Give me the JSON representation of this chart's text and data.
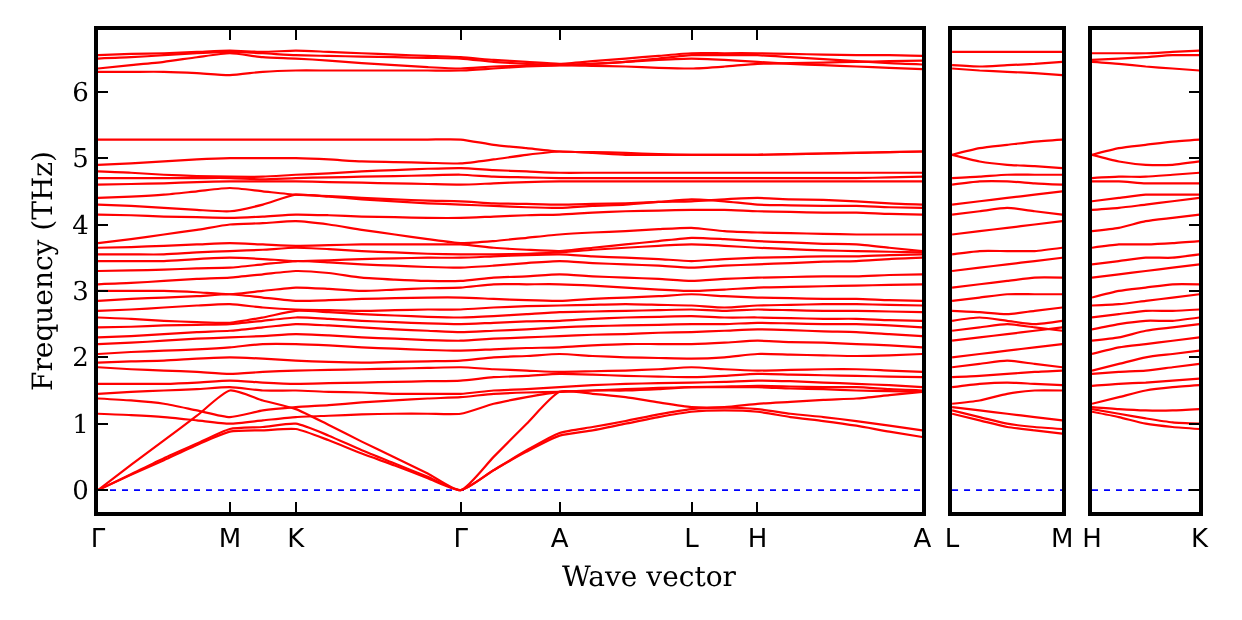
{
  "chart_data": [
    {
      "type": "line",
      "ylabel": "Frequency (THz)",
      "xlabel": "Wave vector",
      "grid": false,
      "marker": "none",
      "line_style": "solid",
      "categories": [
        "Γ",
        null,
        null,
        null,
        "M",
        null,
        "K",
        null,
        null,
        null,
        null,
        "Γ",
        null,
        null,
        "A",
        null,
        null,
        null,
        "L",
        null,
        "H",
        null,
        null,
        null,
        null,
        "A"
      ],
      "ylim": [
        -0.33,
        6.93
      ],
      "yticks": [
        0,
        1,
        2,
        3,
        4,
        5,
        6
      ],
      "ref_lines": [
        {
          "axis": "y",
          "value": 0,
          "color": "#0000ff",
          "line_style": "dotted"
        }
      ],
      "series": [
        {
          "color": "#ff0000",
          "values": [
            0,
            0.23,
            0.45,
            0.68,
            0.88,
            0.9,
            0.92,
            0.75,
            0.55,
            0.37,
            0.18,
            0,
            0.3,
            0.58,
            0.82,
            0.9,
            1.0,
            1.1,
            1.18,
            1.2,
            1.18,
            1.1,
            1.04,
            0.97,
            0.88,
            0.8
          ]
        },
        {
          "color": "#ff0000",
          "values": [
            0,
            0.24,
            0.48,
            0.7,
            0.92,
            0.95,
            1.0,
            0.82,
            0.6,
            0.4,
            0.2,
            0,
            0.3,
            0.6,
            0.86,
            0.95,
            1.04,
            1.14,
            1.22,
            1.24,
            1.22,
            1.15,
            1.1,
            1.04,
            0.97,
            0.9
          ]
        },
        {
          "color": "#ff0000",
          "values": [
            0,
            0.38,
            0.75,
            1.12,
            1.5,
            1.35,
            1.22,
            0.98,
            0.73,
            0.49,
            0.25,
            0,
            0.5,
            1.0,
            1.48,
            1.45,
            1.4,
            1.32,
            1.25,
            1.25,
            1.3,
            1.33,
            1.36,
            1.38,
            1.43,
            1.48
          ]
        },
        {
          "color": "#ff0000",
          "values": [
            1.15,
            1.13,
            1.1,
            1.05,
            1.0,
            1.05,
            1.1,
            1.12,
            1.14,
            1.15,
            1.15,
            1.15,
            1.3,
            1.4,
            1.48,
            1.5,
            1.5,
            1.52,
            1.55,
            1.55,
            1.55,
            1.53,
            1.52,
            1.5,
            1.49,
            1.48
          ]
        },
        {
          "color": "#ff0000",
          "values": [
            1.38,
            1.35,
            1.3,
            1.2,
            1.1,
            1.2,
            1.25,
            1.28,
            1.32,
            1.35,
            1.38,
            1.4,
            1.45,
            1.47,
            1.48,
            1.5,
            1.52,
            1.54,
            1.55,
            1.56,
            1.57,
            1.56,
            1.55,
            1.55,
            1.52,
            1.5
          ]
        },
        {
          "color": "#ff0000",
          "values": [
            1.45,
            1.48,
            1.5,
            1.52,
            1.55,
            1.5,
            1.5,
            1.48,
            1.47,
            1.45,
            1.45,
            1.45,
            1.5,
            1.52,
            1.55,
            1.58,
            1.6,
            1.61,
            1.62,
            1.63,
            1.65,
            1.64,
            1.62,
            1.6,
            1.58,
            1.55
          ]
        },
        {
          "color": "#ff0000",
          "values": [
            1.6,
            1.6,
            1.6,
            1.62,
            1.65,
            1.62,
            1.6,
            1.61,
            1.62,
            1.63,
            1.64,
            1.65,
            1.7,
            1.72,
            1.75,
            1.74,
            1.72,
            1.71,
            1.7,
            1.72,
            1.75,
            1.74,
            1.73,
            1.72,
            1.71,
            1.7
          ]
        },
        {
          "color": "#ff0000",
          "values": [
            1.85,
            1.82,
            1.8,
            1.78,
            1.75,
            1.78,
            1.8,
            1.81,
            1.82,
            1.83,
            1.84,
            1.85,
            1.82,
            1.8,
            1.78,
            1.79,
            1.8,
            1.82,
            1.85,
            1.82,
            1.8,
            1.81,
            1.82,
            1.82,
            1.8,
            1.78
          ]
        },
        {
          "color": "#ff0000",
          "values": [
            1.92,
            1.94,
            1.95,
            1.98,
            2.0,
            1.98,
            1.95,
            1.93,
            1.92,
            1.93,
            1.94,
            1.95,
            2.0,
            2.02,
            2.05,
            2.02,
            2.0,
            1.99,
            1.98,
            2.0,
            2.05,
            2.04,
            2.03,
            2.02,
            2.03,
            2.05
          ]
        },
        {
          "color": "#ff0000",
          "values": [
            2.05,
            2.08,
            2.1,
            2.12,
            2.15,
            2.2,
            2.2,
            2.18,
            2.15,
            2.13,
            2.11,
            2.1,
            2.12,
            2.14,
            2.15,
            2.18,
            2.2,
            2.2,
            2.2,
            2.22,
            2.25,
            2.23,
            2.22,
            2.2,
            2.18,
            2.15
          ]
        },
        {
          "color": "#ff0000",
          "values": [
            2.2,
            2.22,
            2.25,
            2.28,
            2.3,
            2.32,
            2.35,
            2.33,
            2.3,
            2.28,
            2.26,
            2.25,
            2.28,
            2.3,
            2.32,
            2.34,
            2.35,
            2.37,
            2.38,
            2.4,
            2.42,
            2.41,
            2.39,
            2.38,
            2.35,
            2.32
          ]
        },
        {
          "color": "#ff0000",
          "values": [
            2.3,
            2.32,
            2.35,
            2.38,
            2.4,
            2.45,
            2.5,
            2.48,
            2.45,
            2.42,
            2.4,
            2.38,
            2.4,
            2.42,
            2.45,
            2.47,
            2.48,
            2.49,
            2.5,
            2.5,
            2.52,
            2.51,
            2.5,
            2.5,
            2.48,
            2.45
          ]
        },
        {
          "color": "#ff0000",
          "values": [
            2.45,
            2.46,
            2.48,
            2.49,
            2.5,
            2.55,
            2.6,
            2.58,
            2.55,
            2.53,
            2.51,
            2.5,
            2.52,
            2.54,
            2.55,
            2.58,
            2.6,
            2.61,
            2.62,
            2.6,
            2.6,
            2.59,
            2.58,
            2.58,
            2.56,
            2.55
          ]
        },
        {
          "color": "#ff0000",
          "values": [
            2.6,
            2.58,
            2.55,
            2.53,
            2.52,
            2.6,
            2.7,
            2.68,
            2.65,
            2.63,
            2.61,
            2.6,
            2.62,
            2.65,
            2.68,
            2.69,
            2.7,
            2.71,
            2.72,
            2.7,
            2.72,
            2.71,
            2.7,
            2.7,
            2.69,
            2.68
          ]
        },
        {
          "color": "#ff0000",
          "values": [
            2.7,
            2.72,
            2.75,
            2.78,
            2.8,
            2.75,
            2.72,
            2.71,
            2.7,
            2.71,
            2.72,
            2.72,
            2.75,
            2.77,
            2.78,
            2.79,
            2.8,
            2.79,
            2.78,
            2.75,
            2.78,
            2.79,
            2.8,
            2.8,
            2.79,
            2.78
          ]
        },
        {
          "color": "#ff0000",
          "values": [
            2.85,
            2.88,
            2.9,
            2.92,
            2.95,
            2.9,
            2.85,
            2.86,
            2.88,
            2.89,
            2.9,
            2.9,
            2.88,
            2.86,
            2.85,
            2.88,
            2.9,
            2.92,
            2.95,
            2.92,
            2.9,
            2.89,
            2.88,
            2.88,
            2.86,
            2.85
          ]
        },
        {
          "color": "#ff0000",
          "values": [
            3.0,
            3.0,
            3.0,
            2.98,
            2.95,
            3.0,
            3.05,
            3.03,
            3.0,
            3.02,
            3.04,
            3.05,
            3.1,
            3.1,
            3.1,
            3.08,
            3.05,
            3.02,
            3.0,
            3.02,
            3.05,
            3.06,
            3.07,
            3.08,
            3.09,
            3.1
          ]
        },
        {
          "color": "#ff0000",
          "values": [
            3.1,
            3.12,
            3.15,
            3.18,
            3.2,
            3.25,
            3.3,
            3.27,
            3.2,
            3.17,
            3.15,
            3.15,
            3.2,
            3.22,
            3.25,
            3.22,
            3.2,
            3.18,
            3.15,
            3.18,
            3.2,
            3.21,
            3.22,
            3.22,
            3.24,
            3.25
          ]
        },
        {
          "color": "#ff0000",
          "values": [
            3.3,
            3.31,
            3.32,
            3.34,
            3.35,
            3.4,
            3.45,
            3.43,
            3.4,
            3.38,
            3.36,
            3.35,
            3.38,
            3.42,
            3.45,
            3.42,
            3.4,
            3.38,
            3.35,
            3.38,
            3.4,
            3.42,
            3.44,
            3.45,
            3.48,
            3.5
          ]
        },
        {
          "color": "#ff0000",
          "values": [
            3.45,
            3.45,
            3.45,
            3.48,
            3.5,
            3.48,
            3.45,
            3.46,
            3.48,
            3.49,
            3.5,
            3.5,
            3.52,
            3.54,
            3.55,
            3.52,
            3.5,
            3.48,
            3.45,
            3.48,
            3.5,
            3.51,
            3.52,
            3.52,
            3.54,
            3.55
          ]
        },
        {
          "color": "#ff0000",
          "values": [
            3.55,
            3.55,
            3.55,
            3.58,
            3.6,
            3.62,
            3.65,
            3.63,
            3.6,
            3.58,
            3.56,
            3.55,
            3.55,
            3.56,
            3.58,
            3.62,
            3.65,
            3.68,
            3.7,
            3.68,
            3.65,
            3.63,
            3.61,
            3.6,
            3.59,
            3.58
          ]
        },
        {
          "color": "#ff0000",
          "values": [
            3.65,
            3.66,
            3.68,
            3.7,
            3.72,
            3.7,
            3.68,
            3.69,
            3.7,
            3.7,
            3.7,
            3.7,
            3.65,
            3.62,
            3.6,
            3.65,
            3.7,
            3.75,
            3.8,
            3.78,
            3.75,
            3.73,
            3.71,
            3.7,
            3.65,
            3.6
          ]
        },
        {
          "color": "#ff0000",
          "values": [
            3.72,
            3.78,
            3.85,
            3.92,
            4.0,
            4.02,
            4.05,
            4.0,
            3.92,
            3.85,
            3.78,
            3.72,
            3.75,
            3.8,
            3.85,
            3.88,
            3.9,
            3.93,
            3.95,
            3.9,
            3.88,
            3.87,
            3.86,
            3.85,
            3.85,
            3.85
          ]
        },
        {
          "color": "#ff0000",
          "values": [
            4.15,
            4.14,
            4.12,
            4.11,
            4.1,
            4.12,
            4.15,
            4.14,
            4.12,
            4.11,
            4.1,
            4.1,
            4.12,
            4.14,
            4.15,
            4.18,
            4.2,
            4.21,
            4.22,
            4.22,
            4.2,
            4.19,
            4.18,
            4.18,
            4.16,
            4.15
          ]
        },
        {
          "color": "#ff0000",
          "values": [
            4.3,
            4.28,
            4.25,
            4.22,
            4.2,
            4.3,
            4.45,
            4.42,
            4.38,
            4.35,
            4.32,
            4.3,
            4.28,
            4.26,
            4.25,
            4.28,
            4.3,
            4.34,
            4.38,
            4.35,
            4.3,
            4.29,
            4.28,
            4.28,
            4.26,
            4.25
          ]
        },
        {
          "color": "#ff0000",
          "values": [
            4.4,
            4.42,
            4.45,
            4.5,
            4.55,
            4.5,
            4.45,
            4.43,
            4.4,
            4.38,
            4.36,
            4.35,
            4.32,
            4.31,
            4.3,
            4.31,
            4.32,
            4.34,
            4.35,
            4.38,
            4.4,
            4.38,
            4.37,
            4.35,
            4.32,
            4.3
          ]
        },
        {
          "color": "#ff0000",
          "values": [
            4.6,
            4.61,
            4.62,
            4.64,
            4.65,
            4.65,
            4.65,
            4.64,
            4.63,
            4.62,
            4.61,
            4.6,
            4.62,
            4.64,
            4.65,
            4.65,
            4.65,
            4.65,
            4.65,
            4.65,
            4.65,
            4.65,
            4.65,
            4.65,
            4.65,
            4.65
          ]
        },
        {
          "color": "#ff0000",
          "values": [
            4.7,
            4.7,
            4.7,
            4.7,
            4.7,
            4.68,
            4.7,
            4.71,
            4.72,
            4.73,
            4.74,
            4.75,
            4.72,
            4.71,
            4.7,
            4.7,
            4.7,
            4.7,
            4.7,
            4.7,
            4.7,
            4.7,
            4.7,
            4.7,
            4.71,
            4.72
          ]
        },
        {
          "color": "#ff0000",
          "values": [
            4.8,
            4.78,
            4.75,
            4.73,
            4.72,
            4.72,
            4.75,
            4.77,
            4.8,
            4.82,
            4.84,
            4.85,
            4.82,
            4.8,
            4.78,
            4.78,
            4.78,
            4.78,
            4.78,
            4.78,
            4.78,
            4.78,
            4.78,
            4.78,
            4.78,
            4.78
          ]
        },
        {
          "color": "#ff0000",
          "values": [
            4.9,
            4.92,
            4.95,
            4.98,
            5.0,
            5.0,
            5.0,
            4.98,
            4.95,
            4.94,
            4.93,
            4.92,
            4.98,
            5.05,
            5.1,
            5.08,
            5.05,
            5.05,
            5.05,
            5.05,
            5.05,
            5.06,
            5.07,
            5.08,
            5.09,
            5.1
          ]
        },
        {
          "color": "#ff0000",
          "values": [
            5.28,
            5.28,
            5.28,
            5.28,
            5.28,
            5.28,
            5.28,
            5.28,
            5.28,
            5.28,
            5.28,
            5.28,
            5.2,
            5.15,
            5.1,
            5.09,
            5.08,
            5.06,
            5.05,
            5.05,
            5.05,
            5.06,
            5.07,
            5.08,
            5.09,
            5.1
          ]
        },
        {
          "color": "#ff0000",
          "values": [
            6.3,
            6.3,
            6.3,
            6.28,
            6.25,
            6.3,
            6.32,
            6.32,
            6.32,
            6.32,
            6.32,
            6.32,
            6.35,
            6.38,
            6.4,
            6.42,
            6.45,
            6.48,
            6.5,
            6.48,
            6.45,
            6.42,
            6.4,
            6.38,
            6.36,
            6.34
          ]
        },
        {
          "color": "#ff0000",
          "values": [
            6.35,
            6.4,
            6.45,
            6.52,
            6.58,
            6.52,
            6.5,
            6.47,
            6.43,
            6.4,
            6.37,
            6.35,
            6.38,
            6.39,
            6.4,
            6.39,
            6.38,
            6.36,
            6.35,
            6.38,
            6.42,
            6.43,
            6.44,
            6.45,
            6.46,
            6.47
          ]
        },
        {
          "color": "#ff0000",
          "values": [
            6.5,
            6.52,
            6.55,
            6.58,
            6.6,
            6.58,
            6.55,
            6.54,
            6.53,
            6.52,
            6.51,
            6.5,
            6.45,
            6.42,
            6.4,
            6.42,
            6.45,
            6.5,
            6.55,
            6.55,
            6.55,
            6.52,
            6.49,
            6.46,
            6.43,
            6.41
          ]
        },
        {
          "color": "#ff0000",
          "values": [
            6.55,
            6.57,
            6.58,
            6.6,
            6.62,
            6.6,
            6.62,
            6.6,
            6.58,
            6.56,
            6.54,
            6.52,
            6.48,
            6.45,
            6.42,
            6.46,
            6.5,
            6.54,
            6.58,
            6.58,
            6.58,
            6.57,
            6.56,
            6.55,
            6.55,
            6.54
          ]
        }
      ]
    },
    {
      "type": "line",
      "grid": false,
      "marker": "none",
      "line_style": "solid",
      "tick_labels": "x",
      "categories": [
        "L",
        null,
        null,
        null,
        "M"
      ],
      "ylim": [
        -0.33,
        6.93
      ],
      "yticks": [
        0,
        1,
        2,
        3,
        4,
        5,
        6
      ],
      "ref_lines": [
        {
          "axis": "y",
          "value": 0,
          "color": "#0000ff",
          "line_style": "dotted"
        }
      ],
      "series": [
        {
          "color": "#ff0000",
          "values": [
            1.15,
            1.05,
            0.95,
            0.9,
            0.85
          ]
        },
        {
          "color": "#ff0000",
          "values": [
            1.2,
            1.1,
            1.0,
            0.95,
            0.92
          ]
        },
        {
          "color": "#ff0000",
          "values": [
            1.25,
            1.2,
            1.15,
            1.1,
            1.05
          ]
        },
        {
          "color": "#ff0000",
          "values": [
            1.3,
            1.35,
            1.45,
            1.5,
            1.5
          ]
        },
        {
          "color": "#ff0000",
          "values": [
            1.55,
            1.6,
            1.62,
            1.6,
            1.58
          ]
        },
        {
          "color": "#ff0000",
          "values": [
            1.7,
            1.72,
            1.75,
            1.78,
            1.8
          ]
        },
        {
          "color": "#ff0000",
          "values": [
            1.85,
            1.9,
            1.95,
            1.9,
            1.85
          ]
        },
        {
          "color": "#ff0000",
          "values": [
            2.0,
            2.05,
            2.1,
            2.15,
            2.2
          ]
        },
        {
          "color": "#ff0000",
          "values": [
            2.25,
            2.3,
            2.35,
            2.4,
            2.45
          ]
        },
        {
          "color": "#ff0000",
          "values": [
            2.4,
            2.45,
            2.5,
            2.45,
            2.4
          ]
        },
        {
          "color": "#ff0000",
          "values": [
            2.55,
            2.6,
            2.55,
            2.5,
            2.55
          ]
        },
        {
          "color": "#ff0000",
          "values": [
            2.7,
            2.68,
            2.65,
            2.7,
            2.75
          ]
        },
        {
          "color": "#ff0000",
          "values": [
            2.85,
            2.9,
            2.95,
            2.95,
            2.95
          ]
        },
        {
          "color": "#ff0000",
          "values": [
            3.05,
            3.1,
            3.15,
            3.2,
            3.2
          ]
        },
        {
          "color": "#ff0000",
          "values": [
            3.3,
            3.35,
            3.4,
            3.45,
            3.5
          ]
        },
        {
          "color": "#ff0000",
          "values": [
            3.55,
            3.6,
            3.6,
            3.6,
            3.65
          ]
        },
        {
          "color": "#ff0000",
          "values": [
            3.85,
            3.9,
            3.95,
            4.0,
            4.05
          ]
        },
        {
          "color": "#ff0000",
          "values": [
            4.15,
            4.2,
            4.25,
            4.2,
            4.15
          ]
        },
        {
          "color": "#ff0000",
          "values": [
            4.3,
            4.35,
            4.4,
            4.45,
            4.5
          ]
        },
        {
          "color": "#ff0000",
          "values": [
            4.6,
            4.65,
            4.65,
            4.62,
            4.6
          ]
        },
        {
          "color": "#ff0000",
          "values": [
            4.7,
            4.72,
            4.75,
            4.75,
            4.75
          ]
        },
        {
          "color": "#ff0000",
          "values": [
            5.05,
            4.95,
            4.9,
            4.88,
            4.85
          ]
        },
        {
          "color": "#ff0000",
          "values": [
            5.05,
            5.15,
            5.2,
            5.25,
            5.28
          ]
        },
        {
          "color": "#ff0000",
          "values": [
            6.35,
            6.32,
            6.3,
            6.28,
            6.25
          ]
        },
        {
          "color": "#ff0000",
          "values": [
            6.4,
            6.38,
            6.4,
            6.42,
            6.45
          ]
        },
        {
          "color": "#ff0000",
          "values": [
            6.6,
            6.6,
            6.6,
            6.6,
            6.6
          ]
        }
      ]
    },
    {
      "type": "line",
      "grid": false,
      "marker": "none",
      "line_style": "solid",
      "tick_labels": "x",
      "categories": [
        "H",
        null,
        null,
        null,
        "K"
      ],
      "ylim": [
        -0.33,
        6.93
      ],
      "yticks": [
        0,
        1,
        2,
        3,
        4,
        5,
        6
      ],
      "ref_lines": [
        {
          "axis": "y",
          "value": 0,
          "color": "#0000ff",
          "line_style": "dotted"
        }
      ],
      "series": [
        {
          "color": "#ff0000",
          "values": [
            1.18,
            1.1,
            1.0,
            0.95,
            0.92
          ]
        },
        {
          "color": "#ff0000",
          "values": [
            1.22,
            1.15,
            1.08,
            1.02,
            1.0
          ]
        },
        {
          "color": "#ff0000",
          "values": [
            1.25,
            1.22,
            1.2,
            1.2,
            1.22
          ]
        },
        {
          "color": "#ff0000",
          "values": [
            1.3,
            1.4,
            1.5,
            1.55,
            1.58
          ]
        },
        {
          "color": "#ff0000",
          "values": [
            1.57,
            1.6,
            1.62,
            1.65,
            1.68
          ]
        },
        {
          "color": "#ff0000",
          "values": [
            1.75,
            1.78,
            1.8,
            1.85,
            1.9
          ]
        },
        {
          "color": "#ff0000",
          "values": [
            1.8,
            1.9,
            2.0,
            2.05,
            2.1
          ]
        },
        {
          "color": "#ff0000",
          "values": [
            2.05,
            2.15,
            2.2,
            2.25,
            2.3
          ]
        },
        {
          "color": "#ff0000",
          "values": [
            2.25,
            2.3,
            2.4,
            2.45,
            2.5
          ]
        },
        {
          "color": "#ff0000",
          "values": [
            2.42,
            2.5,
            2.55,
            2.55,
            2.6
          ]
        },
        {
          "color": "#ff0000",
          "values": [
            2.6,
            2.65,
            2.7,
            2.7,
            2.72
          ]
        },
        {
          "color": "#ff0000",
          "values": [
            2.78,
            2.8,
            2.85,
            2.9,
            2.95
          ]
        },
        {
          "color": "#ff0000",
          "values": [
            2.9,
            3.0,
            3.05,
            3.1,
            3.1
          ]
        },
        {
          "color": "#ff0000",
          "values": [
            3.2,
            3.25,
            3.3,
            3.35,
            3.4
          ]
        },
        {
          "color": "#ff0000",
          "values": [
            3.4,
            3.45,
            3.5,
            3.5,
            3.55
          ]
        },
        {
          "color": "#ff0000",
          "values": [
            3.65,
            3.7,
            3.7,
            3.72,
            3.75
          ]
        },
        {
          "color": "#ff0000",
          "values": [
            3.9,
            3.95,
            4.05,
            4.1,
            4.15
          ]
        },
        {
          "color": "#ff0000",
          "values": [
            4.22,
            4.25,
            4.3,
            4.35,
            4.4
          ]
        },
        {
          "color": "#ff0000",
          "values": [
            4.35,
            4.4,
            4.45,
            4.45,
            4.45
          ]
        },
        {
          "color": "#ff0000",
          "values": [
            4.65,
            4.65,
            4.62,
            4.62,
            4.62
          ]
        },
        {
          "color": "#ff0000",
          "values": [
            4.7,
            4.72,
            4.72,
            4.75,
            4.78
          ]
        },
        {
          "color": "#ff0000",
          "values": [
            5.05,
            4.95,
            4.9,
            4.9,
            4.95
          ]
        },
        {
          "color": "#ff0000",
          "values": [
            5.05,
            5.15,
            5.2,
            5.25,
            5.28
          ]
        },
        {
          "color": "#ff0000",
          "values": [
            6.45,
            6.42,
            6.38,
            6.35,
            6.32
          ]
        },
        {
          "color": "#ff0000",
          "values": [
            6.48,
            6.5,
            6.52,
            6.55,
            6.55
          ]
        },
        {
          "color": "#ff0000",
          "values": [
            6.58,
            6.58,
            6.58,
            6.6,
            6.62
          ]
        }
      ]
    }
  ]
}
